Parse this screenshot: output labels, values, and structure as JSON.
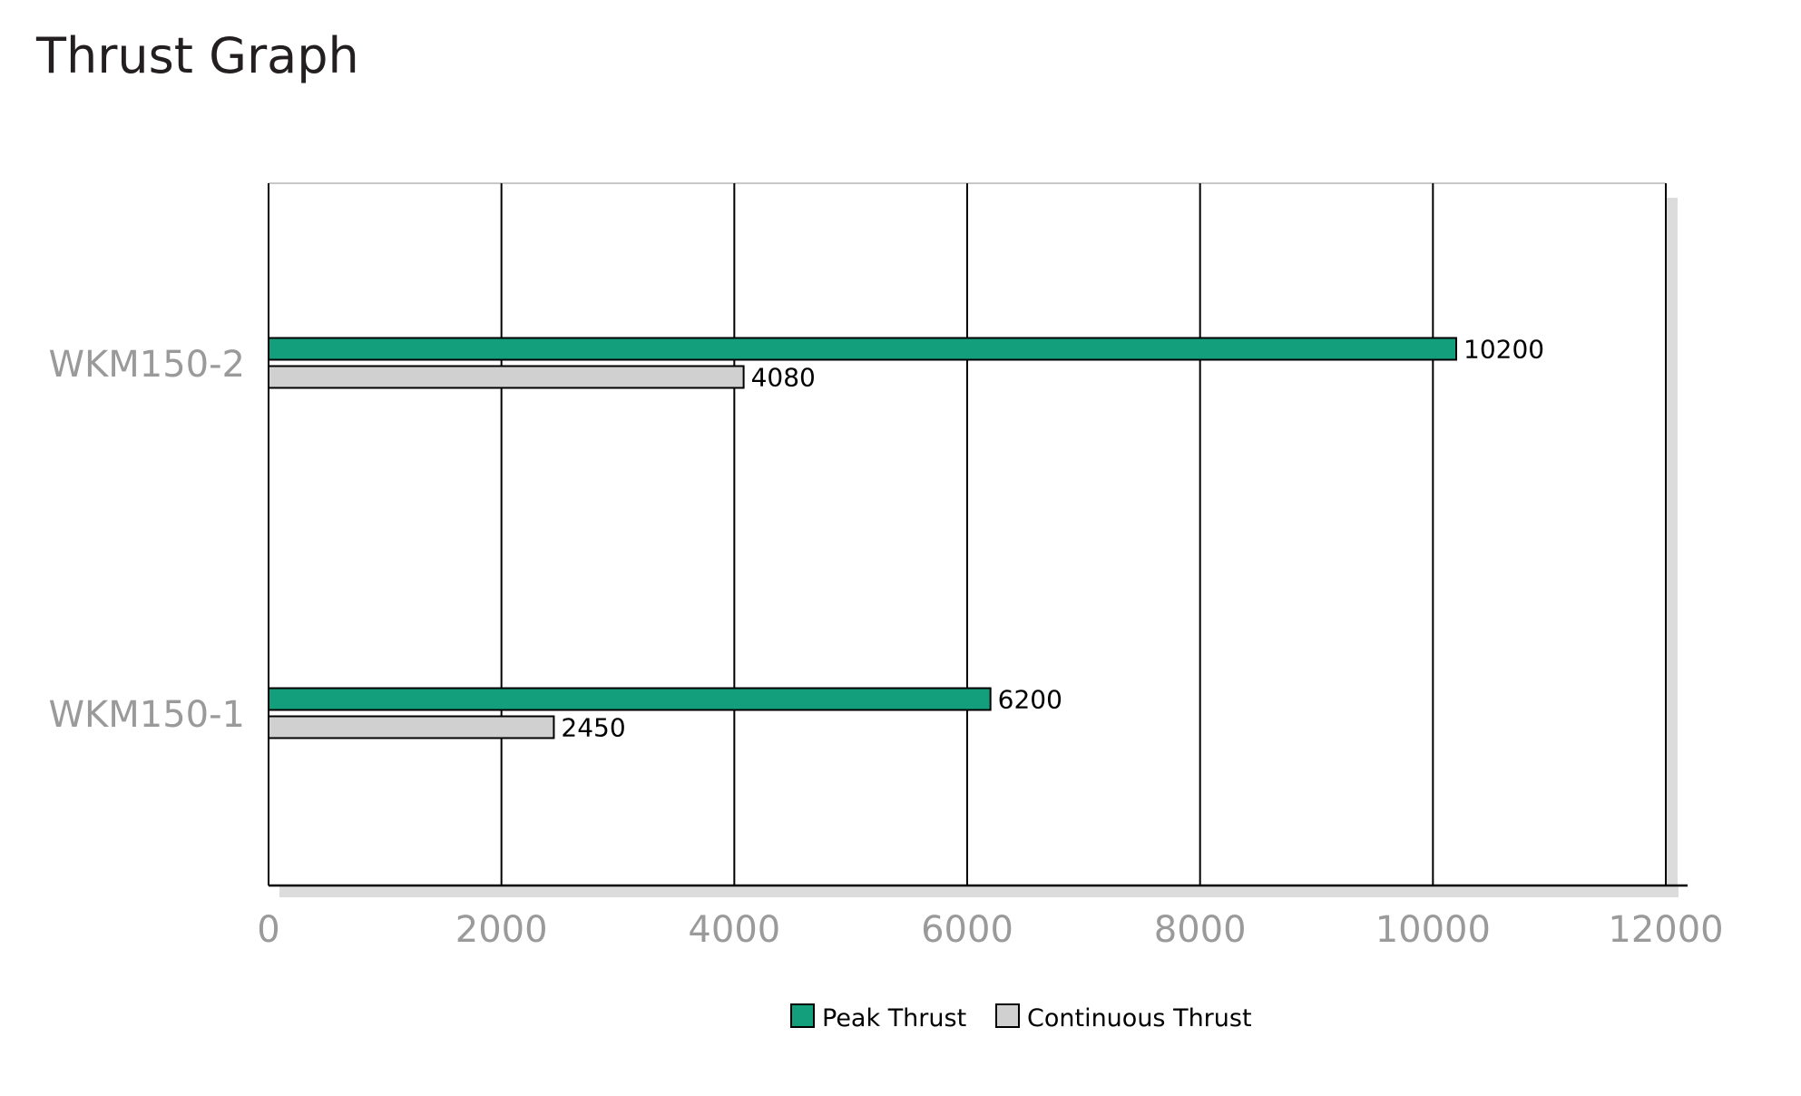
{
  "chart_data": {
    "type": "bar",
    "orientation": "horizontal",
    "title": "Thrust Graph",
    "categories": [
      "WKM150-2",
      "WKM150-1"
    ],
    "series": [
      {
        "name": "Peak Thrust",
        "values": [
          10200,
          6200
        ],
        "color": "#139e7c"
      },
      {
        "name": "Continuous Thrust",
        "values": [
          4080,
          2450
        ],
        "color": "#d0d0d0"
      }
    ],
    "xlim": [
      0,
      12000
    ],
    "xticks": [
      0,
      2000,
      4000,
      6000,
      8000,
      10000,
      12000
    ],
    "grid": true,
    "legend": "bottom-center"
  }
}
